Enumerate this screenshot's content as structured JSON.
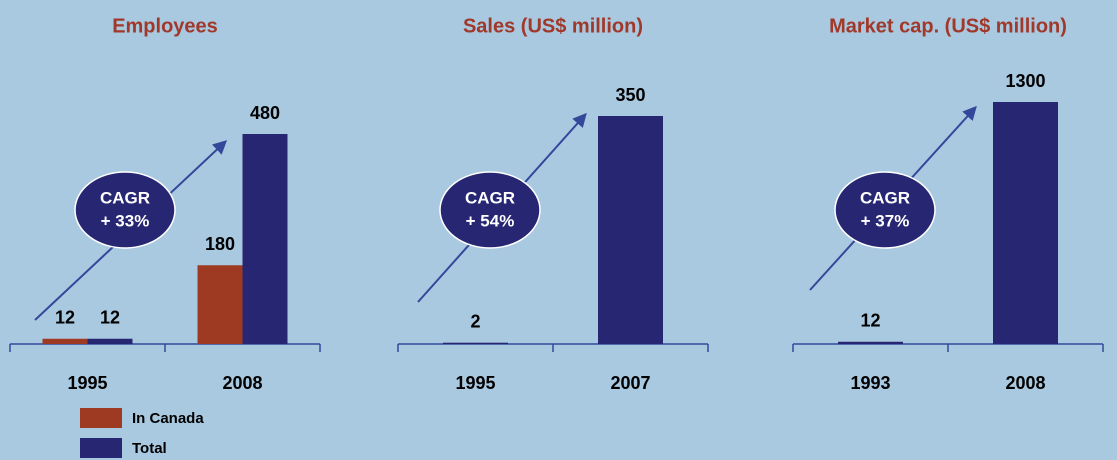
{
  "chart_data": [
    {
      "type": "bar",
      "title": "Employees",
      "categories": [
        "1995",
        "2008"
      ],
      "series": [
        {
          "name": "In Canada",
          "color": "#9e3a22",
          "values": [
            12,
            180
          ]
        },
        {
          "name": "Total",
          "color": "#262673",
          "values": [
            12,
            480
          ]
        }
      ],
      "annotation": [
        "CAGR",
        "+ 33%"
      ]
    },
    {
      "type": "bar",
      "title": "Sales (US$ million)",
      "categories": [
        "1995",
        "2007"
      ],
      "values": [
        2,
        350
      ],
      "color": "#262673",
      "value_label_colors": [
        "#33489a",
        "#000000"
      ],
      "annotation": [
        "CAGR",
        "+ 54%"
      ]
    },
    {
      "type": "bar",
      "title": "Market cap. (US$ million)",
      "categories": [
        "1993",
        "2008"
      ],
      "values": [
        12,
        1300
      ],
      "color": "#262673",
      "annotation": [
        "CAGR",
        "+ 37%"
      ]
    }
  ]
}
